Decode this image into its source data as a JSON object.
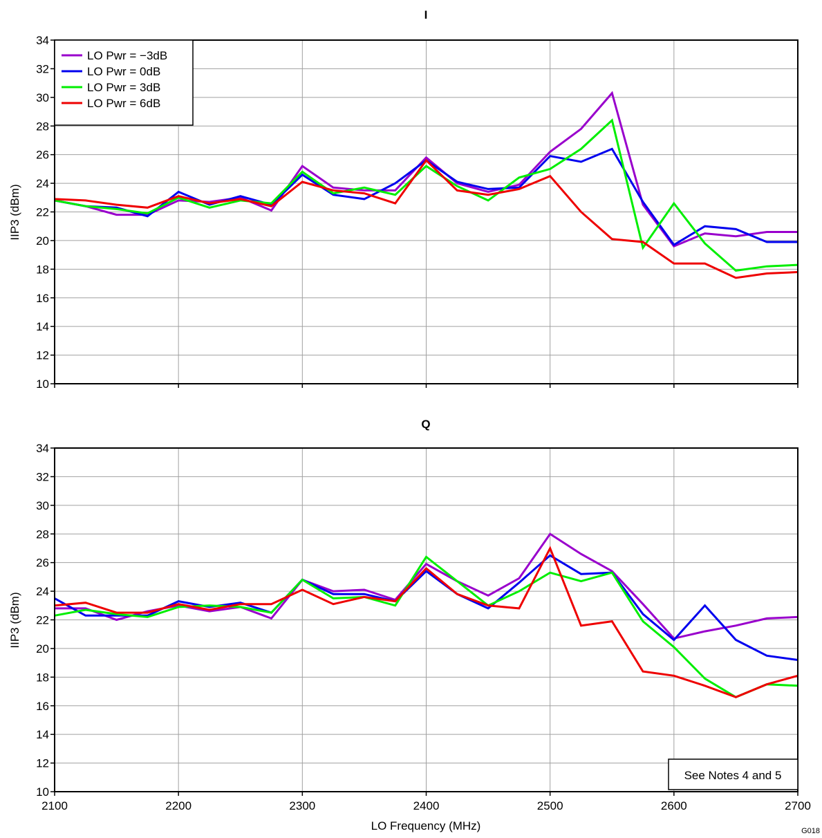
{
  "figure_id": "G018",
  "note_box": "See Notes 4 and 5",
  "colors": {
    "lo_m3": "#9900cc",
    "lo_0": "#0000ee",
    "lo_3": "#00ee00",
    "lo_6": "#ee0000",
    "grid": "#a0a0a0",
    "frame": "#000000"
  },
  "chart_data": [
    {
      "type": "line",
      "title": "I",
      "xlabel": "",
      "ylabel": "IIP3 (dBm)",
      "xlim": [
        2100,
        2700
      ],
      "ylim": [
        10,
        34
      ],
      "x_ticks": [
        2100,
        2200,
        2300,
        2400,
        2500,
        2600,
        2700
      ],
      "y_ticks": [
        10,
        12,
        14,
        16,
        18,
        20,
        22,
        24,
        26,
        28,
        30,
        32,
        34
      ],
      "show_x_tick_labels": false,
      "grid": true,
      "legend": "top-left",
      "x": [
        2100,
        2125,
        2150,
        2175,
        2200,
        2225,
        2250,
        2275,
        2300,
        2325,
        2350,
        2375,
        2400,
        2425,
        2450,
        2475,
        2500,
        2525,
        2550,
        2575,
        2600,
        2625,
        2650,
        2675,
        2700
      ],
      "series": [
        {
          "name": "LO Pwr = −3dB",
          "color_key": "lo_m3",
          "values": [
            22.8,
            22.4,
            21.8,
            21.8,
            22.8,
            22.7,
            23.0,
            22.1,
            25.2,
            23.7,
            23.5,
            23.5,
            25.8,
            24.0,
            23.4,
            23.9,
            26.2,
            27.8,
            30.3,
            22.5,
            19.6,
            20.5,
            20.3,
            20.6,
            20.6
          ]
        },
        {
          "name": "LO Pwr = 0dB",
          "color_key": "lo_0",
          "values": [
            22.8,
            22.4,
            22.3,
            21.7,
            23.4,
            22.5,
            23.1,
            22.5,
            24.6,
            23.2,
            22.9,
            24.0,
            25.6,
            24.1,
            23.6,
            23.7,
            25.9,
            25.5,
            26.4,
            22.7,
            19.7,
            21.0,
            20.8,
            19.9,
            19.9
          ]
        },
        {
          "name": "LO Pwr = 3dB",
          "color_key": "lo_3",
          "values": [
            22.8,
            22.4,
            22.2,
            21.9,
            23.0,
            22.3,
            22.8,
            22.6,
            24.8,
            23.3,
            23.7,
            23.2,
            25.2,
            23.8,
            22.8,
            24.4,
            25.0,
            26.4,
            28.4,
            19.5,
            22.6,
            19.8,
            17.9,
            18.2,
            18.3
          ]
        },
        {
          "name": "LO Pwr = 6dB",
          "color_key": "lo_6",
          "values": [
            22.9,
            22.8,
            22.5,
            22.3,
            23.1,
            22.6,
            22.9,
            22.4,
            24.1,
            23.5,
            23.3,
            22.6,
            25.6,
            23.5,
            23.2,
            23.6,
            24.5,
            22.0,
            20.1,
            19.9,
            18.4,
            18.4,
            17.4,
            17.7,
            17.8
          ]
        }
      ]
    },
    {
      "type": "line",
      "title": "Q",
      "xlabel": "LO Frequency (MHz)",
      "ylabel": "IIP3 (dBm)",
      "xlim": [
        2100,
        2700
      ],
      "ylim": [
        10,
        34
      ],
      "x_ticks": [
        2100,
        2200,
        2300,
        2400,
        2500,
        2600,
        2700
      ],
      "y_ticks": [
        10,
        12,
        14,
        16,
        18,
        20,
        22,
        24,
        26,
        28,
        30,
        32,
        34
      ],
      "show_x_tick_labels": true,
      "grid": true,
      "legend": "none",
      "x": [
        2100,
        2125,
        2150,
        2175,
        2200,
        2225,
        2250,
        2275,
        2300,
        2325,
        2350,
        2375,
        2400,
        2425,
        2450,
        2475,
        2500,
        2525,
        2550,
        2575,
        2600,
        2625,
        2650,
        2675,
        2700
      ],
      "series": [
        {
          "name": "LO Pwr = −3dB",
          "color_key": "lo_m3",
          "values": [
            22.8,
            22.8,
            22.0,
            22.6,
            23.0,
            22.6,
            22.9,
            22.1,
            24.8,
            24.0,
            24.1,
            23.4,
            25.9,
            24.7,
            23.7,
            24.9,
            28.0,
            26.6,
            25.4,
            23.1,
            20.7,
            21.2,
            21.6,
            22.1,
            22.2
          ]
        },
        {
          "name": "LO Pwr = 0dB",
          "color_key": "lo_0",
          "values": [
            23.5,
            22.3,
            22.3,
            22.3,
            23.3,
            22.9,
            23.2,
            22.5,
            24.8,
            23.8,
            23.8,
            23.3,
            25.4,
            23.8,
            22.8,
            24.6,
            26.5,
            25.2,
            25.3,
            22.4,
            20.6,
            23.0,
            20.6,
            19.5,
            19.2
          ]
        },
        {
          "name": "LO Pwr = 3dB",
          "color_key": "lo_3",
          "values": [
            22.3,
            22.7,
            22.4,
            22.2,
            22.9,
            23.0,
            22.9,
            22.5,
            24.8,
            23.5,
            23.6,
            23.0,
            26.4,
            24.7,
            23.0,
            24.0,
            25.3,
            24.7,
            25.3,
            21.9,
            20.1,
            17.9,
            16.6,
            17.5,
            17.4
          ]
        },
        {
          "name": "LO Pwr = 6dB",
          "color_key": "lo_6",
          "values": [
            23.0,
            23.2,
            22.5,
            22.5,
            23.1,
            22.7,
            23.1,
            23.1,
            24.1,
            23.1,
            23.6,
            23.3,
            25.6,
            23.8,
            23.0,
            22.8,
            27.0,
            21.6,
            21.9,
            18.4,
            18.1,
            17.4,
            16.6,
            17.5,
            18.1
          ]
        }
      ]
    }
  ]
}
